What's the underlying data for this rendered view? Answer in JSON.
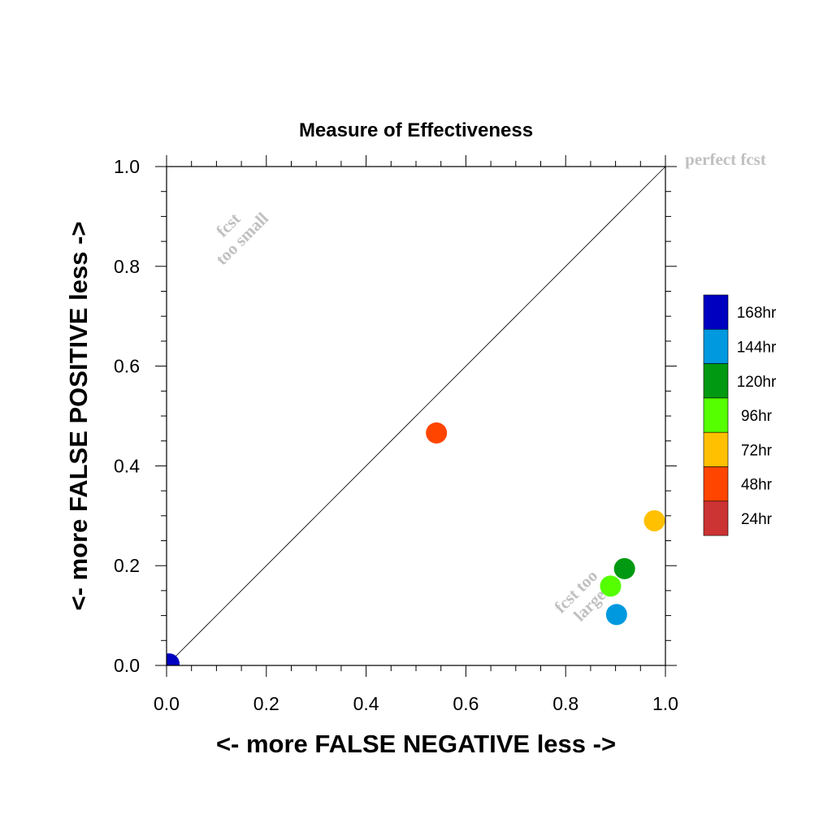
{
  "chart_data": {
    "type": "scatter",
    "title": "Measure of Effectiveness",
    "xlabel": "<- more   FALSE NEGATIVE   less ->",
    "ylabel": "<- more   FALSE POSITIVE   less ->",
    "xlim": [
      0.0,
      1.0
    ],
    "ylim": [
      0.0,
      1.0
    ],
    "xticks": [
      "0.0",
      "0.2",
      "0.4",
      "0.6",
      "0.8",
      "1.0"
    ],
    "yticks": [
      "0.0",
      "0.2",
      "0.4",
      "0.6",
      "0.8",
      "1.0"
    ],
    "grid": false,
    "reference_line": "diagonal",
    "annotations": {
      "perfect": "perfect fcst",
      "small_line1": "fcst",
      "small_line2": "too small",
      "large_line1": "fcst too",
      "large_line2": "large"
    },
    "legend_position": "right",
    "series": [
      {
        "name": "168hr",
        "color": "#0000c0",
        "x": 0.005,
        "y": 0.003
      },
      {
        "name": "144hr",
        "color": "#0099e0",
        "x": 0.902,
        "y": 0.102
      },
      {
        "name": "120hr",
        "color": "#009911",
        "x": 0.918,
        "y": 0.194
      },
      {
        "name": "96hr",
        "color": "#55ff00",
        "x": 0.89,
        "y": 0.159
      },
      {
        "name": "72hr",
        "color": "#ffc000",
        "x": 0.978,
        "y": 0.29
      },
      {
        "name": "48hr",
        "color": "#ff4500",
        "x": 0.541,
        "y": 0.466
      },
      {
        "name": "24hr",
        "color": "#cc3333",
        "x": null,
        "y": null
      }
    ]
  }
}
